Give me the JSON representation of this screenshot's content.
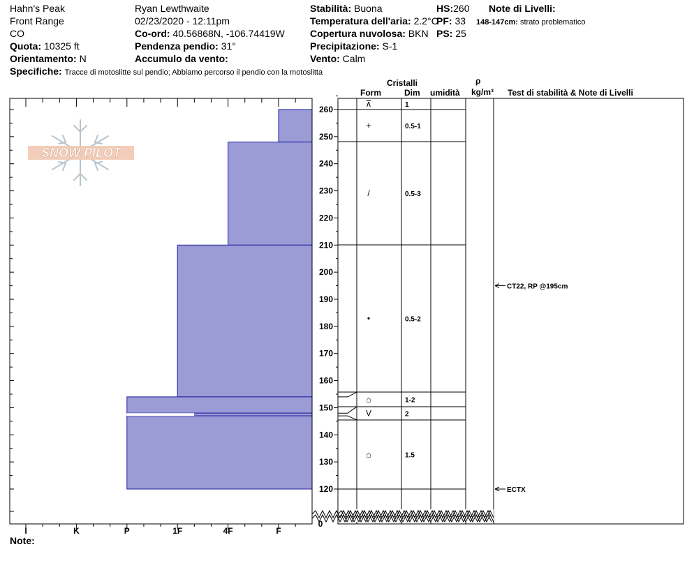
{
  "header": {
    "location": "Hahn's Peak",
    "range": "Front Range",
    "state": "CO",
    "elevation_label": "Quota:",
    "elevation_value": "10325 ft",
    "aspect_label": "Orientamento:",
    "aspect_value": "N",
    "observer": "Ryan Lewthwaite",
    "datetime": "02/23/2020 - 12:11pm",
    "coords_label": "Co-ord:",
    "coords_value": "40.56868N, -106.74419W",
    "slope_label": "Pendenza pendio:",
    "slope_value": "31°",
    "wind_loading_label": "Accumulo da vento:",
    "wind_loading_value": "",
    "stability_label": "Stabilità:",
    "stability_value": "Buona",
    "air_temp_label": "Temperatura dell'aria:",
    "air_temp_value": "2.2°C",
    "cloud_label": "Copertura nuvolosa:",
    "cloud_value": "BKN",
    "precip_label": "Precipitazione:",
    "precip_value": "S-1",
    "wind_label": "Vento:",
    "wind_value": "Calm",
    "hs_label": "HS:",
    "hs_value": "260",
    "pf_label": "PF:",
    "pf_value": "33",
    "ps_label": "PS:",
    "ps_value": "25",
    "layer_notes_title": "Note di Livelli:",
    "layer_note_range": "148-147cm:",
    "layer_note_text": "strato problematico",
    "specifics_label": "Specifiche:",
    "specifics_value": "Tracce di motoslitte sul pendio; Abbiamo percorso il pendio con la motoslitta"
  },
  "columns": {
    "crystals": "Cristalli",
    "form": "Form",
    "dim": "Dim",
    "moisture": "umidità",
    "rho": "ρ",
    "density_unit": "kg/m³",
    "stability_tests": "Test di stabilità & Note di Livelli"
  },
  "footer": {
    "notes_label": "Note:"
  },
  "logo": {
    "text": "SNOW PILOT"
  },
  "chart_data": {
    "type": "bar",
    "orientation": "horizontal",
    "hardness_scale": [
      "I",
      "K",
      "P",
      "1F",
      "4F",
      "F"
    ],
    "hardness_axis_order": "reversed (F = hardest at right)",
    "height_axis": {
      "ylim": [
        120,
        260
      ],
      "ticks": [
        120,
        130,
        140,
        150,
        160,
        170,
        180,
        190,
        200,
        210,
        220,
        230,
        240,
        250,
        260
      ],
      "base_label": "0",
      "axis_break": true
    },
    "layers": [
      {
        "top": 260,
        "bottom": 248,
        "hardness": "F",
        "form": "+ / ⊼",
        "dim": "1 / 0.5-1"
      },
      {
        "top": 248,
        "bottom": 210,
        "hardness": "4F",
        "form": "/",
        "dim": "0.5-3"
      },
      {
        "top": 210,
        "bottom": 154,
        "hardness": "1F",
        "form": "•",
        "dim": "0.5-2"
      },
      {
        "top": 154,
        "bottom": 148,
        "hardness": "P",
        "form": "⌂",
        "dim": "1-2"
      },
      {
        "top": 148,
        "bottom": 147,
        "hardness": "1F-",
        "form": "V",
        "dim": "2"
      },
      {
        "top": 147,
        "bottom": 120,
        "hardness": "P",
        "form": "⌂",
        "dim": "1.5"
      }
    ],
    "crystal_rows": [
      {
        "top": 260,
        "bottom": 256,
        "form": "⊼",
        "dim": "1"
      },
      {
        "top": 256,
        "bottom": 248,
        "form": "+",
        "dim": "0.5-1"
      },
      {
        "top": 248,
        "bottom": 210,
        "form": "/",
        "dim": "0.5-3"
      },
      {
        "top": 210,
        "bottom": 156,
        "form": "•",
        "dim": "0.5-2"
      },
      {
        "top": 156,
        "bottom": 151,
        "form": "⌂",
        "dim": "1-2"
      },
      {
        "top": 151,
        "bottom": 146,
        "form": "V",
        "dim": "2"
      },
      {
        "top": 146,
        "bottom": 120,
        "form": "⌂",
        "dim": "1.5"
      }
    ],
    "tests": [
      {
        "height": 195,
        "label": "CT22, RP @195cm"
      },
      {
        "height": 120,
        "label": "ECTX"
      }
    ]
  }
}
